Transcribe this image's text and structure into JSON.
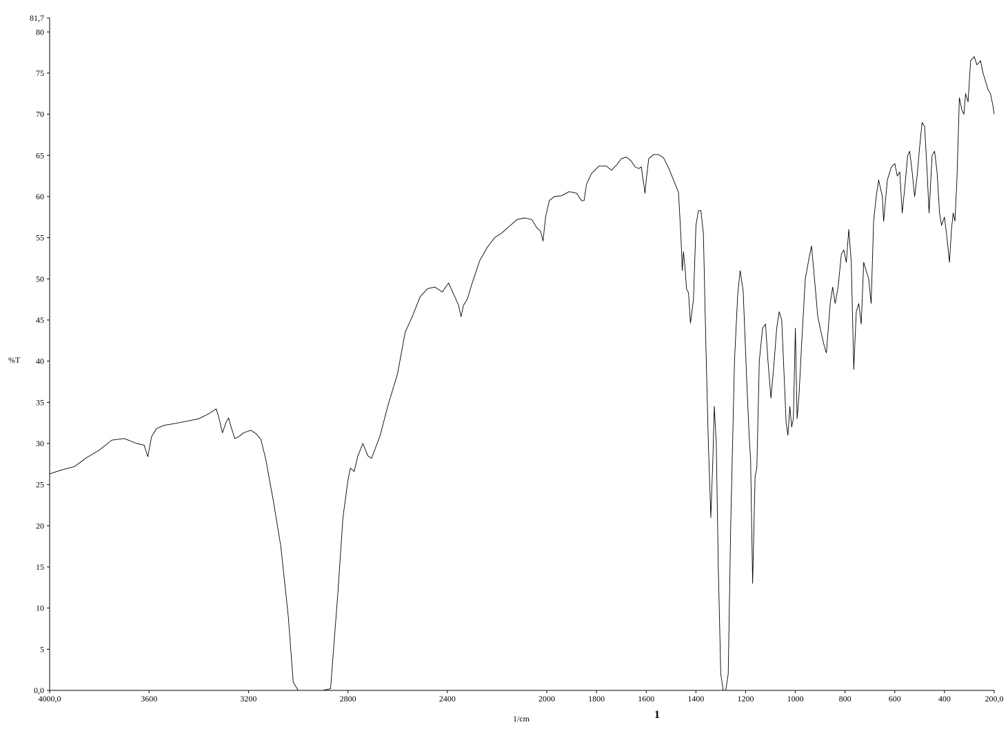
{
  "chart_data": {
    "type": "line",
    "title": "",
    "xlabel": "1/cm",
    "ylabel": "%T",
    "xlim": [
      4000,
      200
    ],
    "ylim": [
      0,
      81.7
    ],
    "x_reversed": true,
    "grid": false,
    "legend": "none",
    "x_ticks": [
      {
        "value": 4000,
        "label": "4000,0"
      },
      {
        "value": 3600,
        "label": "3600"
      },
      {
        "value": 3200,
        "label": "3200"
      },
      {
        "value": 2800,
        "label": "2800"
      },
      {
        "value": 2400,
        "label": "2400"
      },
      {
        "value": 2000,
        "label": "2000"
      },
      {
        "value": 1800,
        "label": "1800"
      },
      {
        "value": 1600,
        "label": "1600"
      },
      {
        "value": 1400,
        "label": "1400"
      },
      {
        "value": 1200,
        "label": "1200"
      },
      {
        "value": 1000,
        "label": "1000"
      },
      {
        "value": 800,
        "label": "800"
      },
      {
        "value": 600,
        "label": "600"
      },
      {
        "value": 400,
        "label": "400"
      },
      {
        "value": 200,
        "label": "200,0"
      }
    ],
    "y_ticks": [
      {
        "value": 0,
        "label": "0,0"
      },
      {
        "value": 5,
        "label": "5"
      },
      {
        "value": 10,
        "label": "10"
      },
      {
        "value": 15,
        "label": "15"
      },
      {
        "value": 20,
        "label": "20"
      },
      {
        "value": 25,
        "label": "25"
      },
      {
        "value": 30,
        "label": "30"
      },
      {
        "value": 35,
        "label": "35"
      },
      {
        "value": 40,
        "label": "40"
      },
      {
        "value": 45,
        "label": "45"
      },
      {
        "value": 50,
        "label": "50"
      },
      {
        "value": 55,
        "label": "55"
      },
      {
        "value": 60,
        "label": "60"
      },
      {
        "value": 65,
        "label": "65"
      },
      {
        "value": 70,
        "label": "70"
      },
      {
        "value": 75,
        "label": "75"
      },
      {
        "value": 80,
        "label": "80"
      },
      {
        "value": 81.7,
        "label": "81,7"
      }
    ],
    "extra_mark": "1",
    "series": [
      {
        "color": "#000000",
        "points": [
          [
            4000,
            26.3
          ],
          [
            3950,
            26.8
          ],
          [
            3900,
            27.2
          ],
          [
            3850,
            28.3
          ],
          [
            3800,
            29.2
          ],
          [
            3750,
            30.4
          ],
          [
            3700,
            30.6
          ],
          [
            3650,
            30.0
          ],
          [
            3620,
            29.8
          ],
          [
            3605,
            28.4
          ],
          [
            3590,
            30.8
          ],
          [
            3570,
            31.8
          ],
          [
            3540,
            32.2
          ],
          [
            3500,
            32.4
          ],
          [
            3450,
            32.7
          ],
          [
            3400,
            33.0
          ],
          [
            3360,
            33.6
          ],
          [
            3330,
            34.2
          ],
          [
            3320,
            33.2
          ],
          [
            3305,
            31.3
          ],
          [
            3290,
            32.6
          ],
          [
            3280,
            33.1
          ],
          [
            3270,
            32.0
          ],
          [
            3255,
            30.6
          ],
          [
            3240,
            30.8
          ],
          [
            3220,
            31.3
          ],
          [
            3190,
            31.6
          ],
          [
            3170,
            31.2
          ],
          [
            3150,
            30.5
          ],
          [
            3130,
            28.0
          ],
          [
            3100,
            23.0
          ],
          [
            3070,
            17.5
          ],
          [
            3040,
            9.0
          ],
          [
            3020,
            1.0
          ],
          [
            3000,
            0.0
          ],
          [
            2950,
            0.0
          ],
          [
            2900,
            0.0
          ],
          [
            2870,
            0.2
          ],
          [
            2840,
            12.0
          ],
          [
            2820,
            21.0
          ],
          [
            2800,
            25.5
          ],
          [
            2790,
            27.0
          ],
          [
            2775,
            26.6
          ],
          [
            2760,
            28.5
          ],
          [
            2740,
            30.0
          ],
          [
            2720,
            28.5
          ],
          [
            2705,
            28.2
          ],
          [
            2690,
            29.4
          ],
          [
            2670,
            31.0
          ],
          [
            2640,
            34.5
          ],
          [
            2600,
            38.5
          ],
          [
            2570,
            43.5
          ],
          [
            2540,
            45.5
          ],
          [
            2510,
            47.8
          ],
          [
            2480,
            48.8
          ],
          [
            2450,
            49.0
          ],
          [
            2420,
            48.4
          ],
          [
            2395,
            49.5
          ],
          [
            2370,
            47.8
          ],
          [
            2355,
            46.8
          ],
          [
            2345,
            45.4
          ],
          [
            2335,
            46.8
          ],
          [
            2320,
            47.5
          ],
          [
            2300,
            49.5
          ],
          [
            2270,
            52.2
          ],
          [
            2240,
            53.8
          ],
          [
            2210,
            55.0
          ],
          [
            2180,
            55.6
          ],
          [
            2150,
            56.4
          ],
          [
            2120,
            57.2
          ],
          [
            2090,
            57.4
          ],
          [
            2060,
            57.2
          ],
          [
            2040,
            56.2
          ],
          [
            2025,
            55.8
          ],
          [
            2015,
            54.6
          ],
          [
            2005,
            57.5
          ],
          [
            1990,
            59.5
          ],
          [
            1970,
            60.0
          ],
          [
            1940,
            60.1
          ],
          [
            1910,
            60.6
          ],
          [
            1880,
            60.4
          ],
          [
            1860,
            59.5
          ],
          [
            1850,
            59.5
          ],
          [
            1840,
            61.5
          ],
          [
            1820,
            62.8
          ],
          [
            1790,
            63.7
          ],
          [
            1760,
            63.7
          ],
          [
            1740,
            63.2
          ],
          [
            1720,
            63.8
          ],
          [
            1700,
            64.6
          ],
          [
            1680,
            64.8
          ],
          [
            1660,
            64.3
          ],
          [
            1645,
            63.6
          ],
          [
            1630,
            63.4
          ],
          [
            1620,
            63.6
          ],
          [
            1610,
            61.5
          ],
          [
            1605,
            60.4
          ],
          [
            1600,
            62.0
          ],
          [
            1590,
            64.6
          ],
          [
            1570,
            65.1
          ],
          [
            1550,
            65.1
          ],
          [
            1530,
            64.7
          ],
          [
            1510,
            63.5
          ],
          [
            1490,
            62.0
          ],
          [
            1470,
            60.5
          ],
          [
            1460,
            55.0
          ],
          [
            1455,
            51.0
          ],
          [
            1450,
            53.3
          ],
          [
            1443,
            51.0
          ],
          [
            1438,
            48.8
          ],
          [
            1430,
            48.3
          ],
          [
            1422,
            44.6
          ],
          [
            1410,
            47.5
          ],
          [
            1400,
            56.5
          ],
          [
            1390,
            58.3
          ],
          [
            1380,
            58.3
          ],
          [
            1370,
            55.5
          ],
          [
            1360,
            42.0
          ],
          [
            1350,
            30.0
          ],
          [
            1340,
            21.0
          ],
          [
            1332,
            28.0
          ],
          [
            1326,
            34.5
          ],
          [
            1318,
            30.0
          ],
          [
            1310,
            15.0
          ],
          [
            1300,
            2.0
          ],
          [
            1290,
            0.0
          ],
          [
            1280,
            0.0
          ],
          [
            1270,
            2.0
          ],
          [
            1260,
            20.0
          ],
          [
            1245,
            40.0
          ],
          [
            1232,
            48.0
          ],
          [
            1222,
            51.0
          ],
          [
            1210,
            48.5
          ],
          [
            1196,
            38.0
          ],
          [
            1186,
            31.0
          ],
          [
            1180,
            28.0
          ],
          [
            1172,
            13.0
          ],
          [
            1162,
            26.0
          ],
          [
            1155,
            27.0
          ],
          [
            1145,
            40.0
          ],
          [
            1132,
            44.0
          ],
          [
            1120,
            44.5
          ],
          [
            1110,
            40.0
          ],
          [
            1098,
            35.5
          ],
          [
            1085,
            40.0
          ],
          [
            1075,
            44.0
          ],
          [
            1065,
            46.0
          ],
          [
            1055,
            45.0
          ],
          [
            1045,
            38.0
          ],
          [
            1037,
            32.5
          ],
          [
            1030,
            31.0
          ],
          [
            1022,
            34.5
          ],
          [
            1015,
            32.0
          ],
          [
            1008,
            33.0
          ],
          [
            1000,
            44.0
          ],
          [
            993,
            33.0
          ],
          [
            985,
            36.0
          ],
          [
            975,
            42.0
          ],
          [
            960,
            50.0
          ],
          [
            945,
            52.5
          ],
          [
            935,
            54.0
          ],
          [
            920,
            49.0
          ],
          [
            910,
            45.5
          ],
          [
            900,
            44.0
          ],
          [
            885,
            42.0
          ],
          [
            875,
            41.0
          ],
          [
            860,
            47.0
          ],
          [
            850,
            49.0
          ],
          [
            840,
            47.0
          ],
          [
            828,
            49.0
          ],
          [
            815,
            53.0
          ],
          [
            805,
            53.5
          ],
          [
            795,
            52.0
          ],
          [
            785,
            56.0
          ],
          [
            775,
            52.0
          ],
          [
            765,
            39.0
          ],
          [
            755,
            46.0
          ],
          [
            745,
            47.0
          ],
          [
            735,
            44.5
          ],
          [
            725,
            52.0
          ],
          [
            715,
            51.0
          ],
          [
            705,
            50.0
          ],
          [
            695,
            47.0
          ],
          [
            685,
            57.0
          ],
          [
            675,
            60.0
          ],
          [
            665,
            62.0
          ],
          [
            650,
            60.0
          ],
          [
            645,
            57.0
          ],
          [
            630,
            62.0
          ],
          [
            615,
            63.5
          ],
          [
            600,
            64.0
          ],
          [
            590,
            62.5
          ],
          [
            580,
            63.0
          ],
          [
            570,
            58.0
          ],
          [
            560,
            61.0
          ],
          [
            548,
            65.0
          ],
          [
            540,
            65.5
          ],
          [
            530,
            63.0
          ],
          [
            520,
            60.0
          ],
          [
            510,
            62.5
          ],
          [
            500,
            66.0
          ],
          [
            490,
            69.0
          ],
          [
            480,
            68.5
          ],
          [
            470,
            63.0
          ],
          [
            462,
            58.0
          ],
          [
            450,
            65.0
          ],
          [
            440,
            65.5
          ],
          [
            430,
            63.0
          ],
          [
            420,
            58.0
          ],
          [
            412,
            56.5
          ],
          [
            400,
            57.5
          ],
          [
            390,
            55.0
          ],
          [
            380,
            52.0
          ],
          [
            372,
            56.0
          ],
          [
            365,
            58.0
          ],
          [
            358,
            57.0
          ],
          [
            350,
            62.0
          ],
          [
            340,
            72.0
          ],
          [
            330,
            70.5
          ],
          [
            322,
            70.0
          ],
          [
            315,
            72.5
          ],
          [
            305,
            71.5
          ],
          [
            295,
            76.5
          ],
          [
            280,
            77.0
          ],
          [
            270,
            76.0
          ],
          [
            255,
            76.5
          ],
          [
            245,
            75.0
          ],
          [
            235,
            74.0
          ],
          [
            225,
            73.0
          ],
          [
            215,
            72.5
          ],
          [
            205,
            71.0
          ],
          [
            200,
            70.0
          ]
        ]
      }
    ]
  }
}
